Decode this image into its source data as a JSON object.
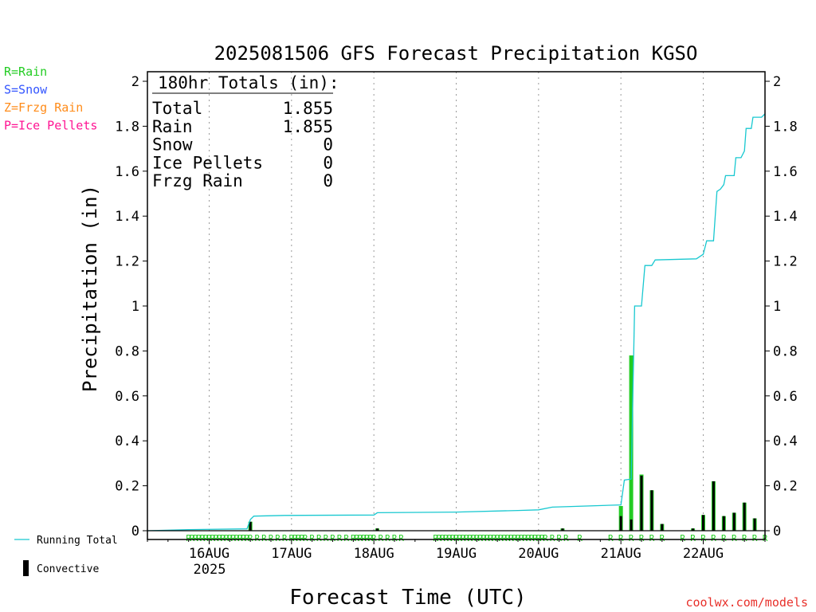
{
  "header": {
    "title": "2025081506 GFS Forecast Precipitation KGSO"
  },
  "legend_types": [
    {
      "label": "R=Rain",
      "color": "#22cc22"
    },
    {
      "label": "S=Snow",
      "color": "#3355ff"
    },
    {
      "label": "Z=Frzg Rain",
      "color": "#ff8c1a"
    },
    {
      "label": "P=Ice Pellets",
      "color": "#ff1493"
    }
  ],
  "totals": {
    "heading": "180hr Totals (in):",
    "rows": [
      {
        "label": "Total",
        "value": "1.855"
      },
      {
        "label": "Rain",
        "value": "1.855"
      },
      {
        "label": "Snow",
        "value": "0"
      },
      {
        "label": "Ice Pellets",
        "value": "0"
      },
      {
        "label": "Frzg Rain",
        "value": "0"
      }
    ]
  },
  "legend_lines": {
    "running_total": "Running Total",
    "convective": "Convective",
    "running_total_color": "#18c8d0"
  },
  "xlabel": "Forecast Time (UTC)",
  "ylabel": "Precipitation (in)",
  "year_label": "2025",
  "credit": "coolwx.com/models",
  "credit_color": "#e8302a",
  "chart_data": {
    "type": "bar",
    "title": "2025081506 GFS Forecast Precipitation KGSO",
    "xlabel": "Forecast Time (UTC)",
    "ylabel": "Precipitation (in)",
    "xlim_hours": [
      0,
      180
    ],
    "ylim": [
      0,
      2
    ],
    "yticks": [
      0,
      0.2,
      0.4,
      0.6,
      0.8,
      1,
      1.2,
      1.4,
      1.6,
      1.8,
      2
    ],
    "ytick_labels": [
      "0",
      "0.2",
      "0.4",
      "0.6",
      "0.8",
      "1",
      "1.2",
      "1.4",
      "1.6",
      "1.8",
      "2"
    ],
    "xticks": [
      {
        "label": "16AUG",
        "hour": 18
      },
      {
        "label": "17AUG",
        "hour": 42
      },
      {
        "label": "18AUG",
        "hour": 66
      },
      {
        "label": "19AUG",
        "hour": 90
      },
      {
        "label": "20AUG",
        "hour": 114
      },
      {
        "label": "21AUG",
        "hour": 138
      },
      {
        "label": "22AUG",
        "hour": 162
      }
    ],
    "grid": "vertical dotted at day ticks",
    "precip_type_marker": "R",
    "series": [
      {
        "name": "Rain",
        "color": "#22cc22",
        "points": [
          [
            30,
            0.04
          ],
          [
            67,
            0.01
          ],
          [
            121,
            0.01
          ],
          [
            138,
            0.11
          ],
          [
            141,
            0.78
          ],
          [
            144,
            0.25
          ],
          [
            147,
            0.18
          ],
          [
            150,
            0.03
          ],
          [
            159,
            0.01
          ],
          [
            162,
            0.07
          ],
          [
            165,
            0.22
          ],
          [
            168,
            0.065
          ],
          [
            171,
            0.08
          ],
          [
            174,
            0.125
          ],
          [
            177,
            0.055
          ]
        ]
      },
      {
        "name": "Convective",
        "color": "#000000",
        "points": [
          [
            30,
            0.04
          ],
          [
            67,
            0.01
          ],
          [
            121,
            0.01
          ],
          [
            138,
            0.065
          ],
          [
            141,
            0.05
          ],
          [
            144,
            0.245
          ],
          [
            147,
            0.18
          ],
          [
            150,
            0.03
          ],
          [
            159,
            0.01
          ],
          [
            162,
            0.07
          ],
          [
            165,
            0.22
          ],
          [
            168,
            0.065
          ],
          [
            171,
            0.08
          ],
          [
            174,
            0.125
          ],
          [
            177,
            0.055
          ]
        ]
      },
      {
        "name": "Running Total",
        "color": "#18c8d0",
        "points": [
          [
            0,
            0.0
          ],
          [
            12,
            0.005
          ],
          [
            29,
            0.008
          ],
          [
            30,
            0.05
          ],
          [
            31,
            0.065
          ],
          [
            40,
            0.068
          ],
          [
            66,
            0.07
          ],
          [
            67,
            0.08
          ],
          [
            90,
            0.083
          ],
          [
            108,
            0.09
          ],
          [
            114,
            0.093
          ],
          [
            118,
            0.105
          ],
          [
            138,
            0.115
          ],
          [
            139,
            0.225
          ],
          [
            141,
            0.23
          ],
          [
            142,
            1.0
          ],
          [
            144,
            1.0
          ],
          [
            145,
            1.18
          ],
          [
            147,
            1.18
          ],
          [
            148,
            1.205
          ],
          [
            160,
            1.21
          ],
          [
            162,
            1.23
          ],
          [
            163,
            1.29
          ],
          [
            165,
            1.29
          ],
          [
            166,
            1.51
          ],
          [
            167,
            1.52
          ],
          [
            168,
            1.54
          ],
          [
            168.5,
            1.58
          ],
          [
            171,
            1.58
          ],
          [
            171.5,
            1.66
          ],
          [
            173,
            1.66
          ],
          [
            174,
            1.69
          ],
          [
            174.5,
            1.79
          ],
          [
            176,
            1.79
          ],
          [
            176.5,
            1.84
          ],
          [
            179,
            1.84
          ],
          [
            180,
            1.855
          ]
        ]
      }
    ],
    "rain_marker_hours": [
      12,
      13,
      14,
      15,
      16,
      17,
      18,
      19,
      20,
      21,
      22,
      23,
      24,
      25,
      26,
      27,
      28,
      29,
      30,
      32,
      34,
      36,
      38,
      40,
      42,
      43,
      44,
      45,
      46,
      48,
      50,
      52,
      54,
      56,
      58,
      60,
      61,
      62,
      63,
      64,
      65,
      66,
      68,
      70,
      72,
      74,
      84,
      85,
      86,
      87,
      88,
      89,
      90,
      91,
      92,
      93,
      94,
      95,
      96,
      97,
      98,
      99,
      100,
      101,
      102,
      103,
      104,
      105,
      106,
      107,
      108,
      109,
      110,
      111,
      112,
      113,
      114,
      115,
      116,
      118,
      120,
      122,
      126,
      135,
      138,
      141,
      144,
      147,
      150,
      156,
      159,
      162,
      165,
      168,
      171,
      174,
      177,
      180
    ]
  }
}
